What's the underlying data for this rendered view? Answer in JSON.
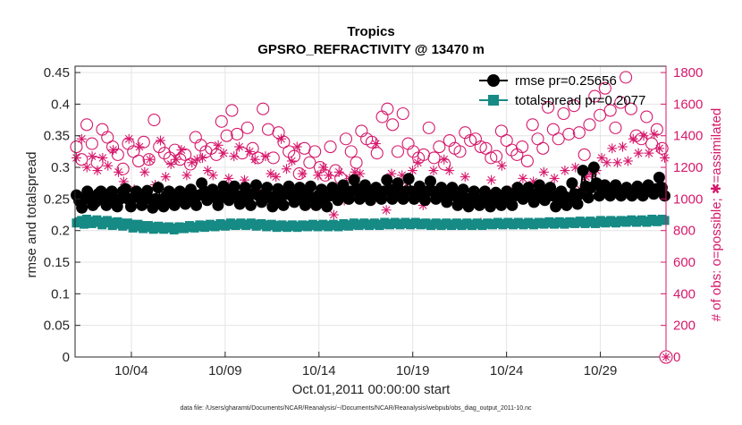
{
  "chart_data": {
    "type": "line",
    "title": "Tropics",
    "subtitle": "GPSRO_REFRACTIVITY @ 13470 m",
    "xlabel": "Oct.01,2011 00:00:00 start",
    "ylabel_left": "rmse and totalspread",
    "ylabel_right": "# of obs: o=possible; ✱=assimilated",
    "footer": "data file: /Users/gharamti/Documents/NCAR/Reanalysis/~/Documents/NCAR/Reanalysis/webpub/obs_diag_output_2011-10.nc",
    "x_range_days": [
      0.5,
      32
    ],
    "x_ticks": [
      {
        "day": 3.5,
        "label": "10/04"
      },
      {
        "day": 8.5,
        "label": "10/09"
      },
      {
        "day": 13.5,
        "label": "10/14"
      },
      {
        "day": 18.5,
        "label": "10/19"
      },
      {
        "day": 23.5,
        "label": "10/24"
      },
      {
        "day": 28.5,
        "label": "10/29"
      }
    ],
    "ylim_left": [
      0,
      0.46
    ],
    "yticks_left": [
      "0",
      "0.05",
      "0.1",
      "0.15",
      "0.2",
      "0.25",
      "0.3",
      "0.35",
      "0.4",
      "0.45"
    ],
    "ylim_right": [
      0,
      1840
    ],
    "yticks_right": [
      "0",
      "200",
      "400",
      "600",
      "800",
      "1000",
      "1200",
      "1400",
      "1600",
      "1800"
    ],
    "grid": true,
    "legend_position": "top-right",
    "colors": {
      "rmse": "#000000",
      "spread": "#168a84",
      "obs": "#d6186b"
    },
    "series": [
      {
        "name": "rmse",
        "legend": "rmse pr=0.25656",
        "axis": "left",
        "values": [
          0.256,
          0.247,
          0.236,
          0.25,
          0.262,
          0.252,
          0.24,
          0.245,
          0.258,
          0.262,
          0.25,
          0.24,
          0.255,
          0.262,
          0.248,
          0.238,
          0.25,
          0.262,
          0.266,
          0.25,
          0.238,
          0.252,
          0.262,
          0.255,
          0.24,
          0.25,
          0.263,
          0.25,
          0.236,
          0.25,
          0.268,
          0.248,
          0.238,
          0.255,
          0.262,
          0.247,
          0.24,
          0.252,
          0.262,
          0.25,
          0.242,
          0.255,
          0.265,
          0.252,
          0.24,
          0.256,
          0.275,
          0.262,
          0.248,
          0.256,
          0.265,
          0.252,
          0.24,
          0.256,
          0.27,
          0.252,
          0.248,
          0.26,
          0.27,
          0.255,
          0.242,
          0.256,
          0.268,
          0.252,
          0.24,
          0.258,
          0.272,
          0.255,
          0.245,
          0.258,
          0.268,
          0.252,
          0.238,
          0.255,
          0.266,
          0.25,
          0.24,
          0.258,
          0.27,
          0.255,
          0.245,
          0.258,
          0.268,
          0.25,
          0.24,
          0.258,
          0.27,
          0.252,
          0.24,
          0.256,
          0.265,
          0.25,
          0.238,
          0.255,
          0.268,
          0.26,
          0.248,
          0.258,
          0.272,
          0.262,
          0.25,
          0.262,
          0.28,
          0.266,
          0.25,
          0.26,
          0.272,
          0.262,
          0.248,
          0.255,
          0.268,
          0.26,
          0.25,
          0.262,
          0.28,
          0.265,
          0.25,
          0.262,
          0.275,
          0.262,
          0.25,
          0.262,
          0.282,
          0.262,
          0.25,
          0.262,
          0.27,
          0.258,
          0.248,
          0.262,
          0.278,
          0.262,
          0.25,
          0.262,
          0.268,
          0.255,
          0.245,
          0.258,
          0.268,
          0.255,
          0.24,
          0.252,
          0.265,
          0.25,
          0.238,
          0.252,
          0.262,
          0.25,
          0.24,
          0.25,
          0.262,
          0.25,
          0.238,
          0.248,
          0.26,
          0.25,
          0.24,
          0.252,
          0.262,
          0.25,
          0.24,
          0.255,
          0.268,
          0.262,
          0.25,
          0.262,
          0.268,
          0.255,
          0.245,
          0.258,
          0.272,
          0.26,
          0.248,
          0.256,
          0.268,
          0.255,
          0.238,
          0.248,
          0.262,
          0.255,
          0.24,
          0.252,
          0.275,
          0.258,
          0.242,
          0.258,
          0.295,
          0.27,
          0.252,
          0.268,
          0.3,
          0.275,
          0.255,
          0.266,
          0.272,
          0.262,
          0.255,
          0.262,
          0.272,
          0.262,
          0.255,
          0.262,
          0.268,
          0.26,
          0.255,
          0.262,
          0.27,
          0.262,
          0.255,
          0.262,
          0.272,
          0.262,
          0.258,
          0.266,
          0.284,
          0.268,
          0.255
        ]
      },
      {
        "name": "totalspread",
        "legend": "totalspread pr=0.2077",
        "axis": "left",
        "values": [
          0.212,
          0.214,
          0.216,
          0.21,
          0.218,
          0.215,
          0.211,
          0.213,
          0.217,
          0.214,
          0.209,
          0.212,
          0.216,
          0.213,
          0.208,
          0.21,
          0.214,
          0.212,
          0.207,
          0.209,
          0.212,
          0.21,
          0.204,
          0.206,
          0.21,
          0.208,
          0.203,
          0.205,
          0.208,
          0.206,
          0.202,
          0.204,
          0.207,
          0.205,
          0.202,
          0.204,
          0.206,
          0.204,
          0.201,
          0.203,
          0.206,
          0.205,
          0.203,
          0.205,
          0.208,
          0.206,
          0.204,
          0.206,
          0.209,
          0.208,
          0.205,
          0.207,
          0.21,
          0.208,
          0.206,
          0.208,
          0.211,
          0.209,
          0.207,
          0.209,
          0.212,
          0.21,
          0.208,
          0.21,
          0.212,
          0.21,
          0.208,
          0.21,
          0.212,
          0.21,
          0.207,
          0.209,
          0.211,
          0.209,
          0.206,
          0.208,
          0.21,
          0.208,
          0.205,
          0.207,
          0.209,
          0.207,
          0.205,
          0.207,
          0.209,
          0.207,
          0.205,
          0.207,
          0.209,
          0.208,
          0.206,
          0.208,
          0.21,
          0.208,
          0.206,
          0.208,
          0.21,
          0.208,
          0.206,
          0.208,
          0.21,
          0.208,
          0.206,
          0.208,
          0.211,
          0.209,
          0.207,
          0.209,
          0.212,
          0.21,
          0.208,
          0.21,
          0.212,
          0.21,
          0.208,
          0.21,
          0.212,
          0.21,
          0.208,
          0.21,
          0.213,
          0.211,
          0.209,
          0.211,
          0.213,
          0.211,
          0.209,
          0.211,
          0.213,
          0.211,
          0.209,
          0.211,
          0.213,
          0.211,
          0.209,
          0.211,
          0.212,
          0.21,
          0.208,
          0.21,
          0.212,
          0.21,
          0.208,
          0.21,
          0.212,
          0.21,
          0.208,
          0.21,
          0.212,
          0.21,
          0.208,
          0.21,
          0.212,
          0.21,
          0.208,
          0.21,
          0.212,
          0.21,
          0.208,
          0.21,
          0.212,
          0.21,
          0.209,
          0.211,
          0.213,
          0.211,
          0.209,
          0.211,
          0.213,
          0.211,
          0.209,
          0.211,
          0.213,
          0.211,
          0.209,
          0.211,
          0.213,
          0.211,
          0.209,
          0.211,
          0.213,
          0.212,
          0.21,
          0.212,
          0.214,
          0.212,
          0.21,
          0.212,
          0.214,
          0.212,
          0.21,
          0.212,
          0.214,
          0.213,
          0.211,
          0.213,
          0.215,
          0.213,
          0.211,
          0.213,
          0.215,
          0.213,
          0.211,
          0.213,
          0.216,
          0.214,
          0.212,
          0.214,
          0.216,
          0.214,
          0.212,
          0.214,
          0.216,
          0.215,
          0.213,
          0.215,
          0.217,
          0.215,
          0.213,
          0.215,
          0.217,
          0.215,
          0.213,
          0.215,
          0.218,
          0.216,
          0.214,
          0.216,
          0.218,
          0.216
        ]
      },
      {
        "name": "possible",
        "axis": "right",
        "marker": "circle",
        "values": [
          1330,
          1410,
          1250,
          1360,
          1470,
          1290,
          1350,
          1420,
          1230,
          1310,
          1440,
          1270,
          1390,
          1200,
          1330,
          1460,
          1280,
          1340,
          1190,
          1260,
          1350,
          1430,
          1300,
          1360,
          1240,
          1290,
          1360,
          1380,
          1250,
          1320,
          1500,
          1270,
          1330,
          1210,
          1290,
          1370,
          1260,
          1400,
          1310,
          1180,
          1250,
          1330,
          1280,
          1350,
          1220,
          1300,
          1390,
          1260,
          1340,
          1470,
          1300,
          1380,
          1320,
          1450,
          1280,
          1360,
          1490,
          1330,
          1400,
          1230,
          1560,
          1340,
          1410,
          1500,
          1290,
          1360,
          1450,
          1540,
          1320,
          1420,
          1260,
          1380,
          1570,
          1320,
          1440,
          1380,
          1260,
          1340,
          1420,
          1580,
          1360,
          1210,
          1300,
          1390,
          1270,
          1330,
          1160,
          1250,
          1320,
          1170,
          1230,
          1180,
          1300,
          1110,
          1200,
          1290,
          1150,
          1240,
          1330,
          1060,
          1180,
          1260,
          1130,
          1230,
          1380,
          1420,
          1300,
          1380,
          1230,
          1320,
          1430,
          1310,
          1380,
          1250,
          1360,
          1470,
          1290,
          1420,
          1520,
          1330,
          1570,
          1400,
          1470,
          1360,
          1300,
          1420,
          1540,
          1400,
          1350,
          1430,
          1300,
          1380,
          1260,
          1340,
          1280,
          1370,
          1450,
          1320,
          1260,
          1280,
          1330,
          1400,
          1220,
          1290,
          1370,
          1250,
          1320,
          1380,
          1300,
          1360,
          1420,
          1260,
          1370,
          1300,
          1380,
          1430,
          1330,
          1240,
          1320,
          1400,
          1260,
          1340,
          1270,
          1350,
          1430,
          1290,
          1370,
          1230,
          1310,
          1390,
          1280,
          1250,
          1330,
          1410,
          1240,
          1360,
          1470,
          1290,
          1380,
          1530,
          1320,
          1450,
          1580,
          1360,
          1440,
          1520,
          1380,
          1460,
          1540,
          1630,
          1410,
          1500,
          1590,
          1330,
          1420,
          1510,
          1280,
          1380,
          1470,
          1560,
          1650,
          1440,
          1530,
          1620,
          1700,
          1480,
          1560,
          1380,
          1450,
          1530,
          1610,
          1700,
          1770,
          1650,
          1570,
          1480,
          1400,
          1330,
          1380,
          1450,
          1520,
          1420,
          1350,
          1400,
          1440,
          1360,
          1320,
          1380
        ]
      },
      {
        "name": "assimilated",
        "axis": "right",
        "marker": "asterisk",
        "values": [
          1260,
          1220,
          1380,
          1410,
          1200,
          1090,
          1270,
          1350,
          1180,
          1060,
          1260,
          1390,
          1210,
          1140,
          1310,
          1240,
          1170,
          1310,
          1110,
          1220,
          1380,
          1230,
          1060,
          1190,
          1330,
          1120,
          1170,
          1300,
          1250,
          1190,
          1090,
          1210,
          1370,
          1260,
          1140,
          1070,
          1220,
          1300,
          1250,
          1160,
          1310,
          1200,
          1150,
          1290,
          1230,
          1090,
          1250,
          1360,
          1260,
          1120,
          1180,
          1070,
          1150,
          1270,
          1340,
          1200,
          1290,
          1060,
          1130,
          1210,
          1270,
          1170,
          1330,
          1230,
          1120,
          1260,
          1300,
          1190,
          1250,
          1120,
          1050,
          1110,
          1270,
          1320,
          1160,
          1080,
          1140,
          1270,
          1380,
          1320,
          1190,
          1420,
          1240,
          1160,
          1330,
          1220,
          1160,
          1230,
          1050,
          1120,
          960,
          1060,
          1150,
          1000,
          1200,
          1080,
          1150,
          1020,
          900,
          1040,
          1170,
          1060,
          990,
          1210,
          1130,
          1040,
          1170,
          1270,
          1160,
          1190,
          1030,
          1090,
          1010,
          1200,
          1350,
          1250,
          1040,
          1090,
          930,
          1020,
          1160,
          1250,
          1080,
          1030,
          1150,
          1220,
          1100,
          1040,
          1180,
          1300,
          1230,
          1150,
          960,
          1000,
          1080,
          1020,
          1180,
          1120,
          1040,
          1220,
          1250,
          1110,
          1180,
          1090,
          1020,
          1160,
          1000,
          1050,
          1140,
          1060,
          1000,
          900,
          990,
          1060,
          850,
          970,
          1050,
          1010,
          1120,
          1060,
          980,
          1170,
          1210,
          1080,
          1010,
          1110,
          1060,
          1160,
          1030,
          1250,
          1130,
          1180,
          1040,
          1230,
          1110,
          1090,
          1060,
          1200,
          1170,
          1100,
          1030,
          1080,
          1130,
          1000,
          1040,
          1080,
          1180,
          1130,
          1010,
          1050,
          1200,
          1130,
          1060,
          1020,
          1140,
          1220,
          1160,
          1100,
          1180,
          1120,
          1260,
          1310,
          1230,
          1180,
          1320,
          1270,
          1230,
          1260,
          1330,
          1290,
          1240,
          1300,
          1380,
          1340,
          1290,
          1360,
          1400,
          1330,
          1290,
          1360,
          1410,
          1270,
          1320,
          1360,
          1260
        ]
      }
    ]
  }
}
